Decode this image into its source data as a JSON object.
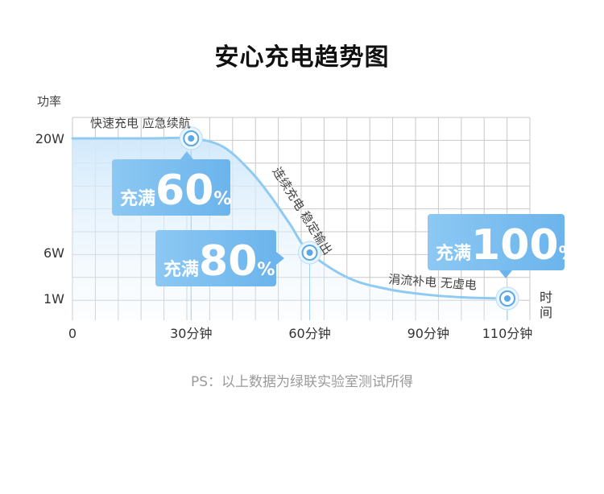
{
  "title": "安心充电趋势图",
  "note": "PS：以上数据为绿联实验室测试所得",
  "chart_data": {
    "type": "line",
    "ylabel": "功率",
    "xlabel": "时间",
    "y_ticks": [
      "20W",
      "6W",
      "1W"
    ],
    "x_ticks": [
      "0",
      "30分钟",
      "60分钟",
      "90分钟",
      "110分钟"
    ],
    "x_tick_values": [
      0,
      30,
      60,
      90,
      110
    ],
    "y_tick_values": [
      20,
      6,
      1
    ],
    "series": [
      {
        "x": [
          0,
          20,
          30,
          38,
          45,
          50,
          55,
          60,
          70,
          80,
          90,
          100,
          110
        ],
        "y": [
          20,
          20,
          20,
          19,
          16,
          13,
          9.5,
          6,
          3.2,
          2,
          1.4,
          1.1,
          1
        ]
      }
    ],
    "markers": [
      {
        "x": 30,
        "y": 20
      },
      {
        "x": 60,
        "y": 6
      },
      {
        "x": 110,
        "y": 1
      }
    ],
    "annotations": [
      {
        "text": "快速充电 应急续航"
      },
      {
        "text": "连续充电 稳定输出"
      },
      {
        "text": "涓流补电 无虚电"
      }
    ],
    "bubbles": [
      {
        "prefix": "充满",
        "value": "60",
        "unit": "%"
      },
      {
        "prefix": "充满",
        "value": "80",
        "unit": "%"
      },
      {
        "prefix": "充满",
        "value": "100",
        "unit": "%"
      }
    ],
    "colors": {
      "line": "#8fcaf2",
      "fill": "#d9eefc",
      "bubble": "#73b9ee",
      "marker": "#5aa9e6",
      "grid": "#c9c9c9"
    }
  }
}
